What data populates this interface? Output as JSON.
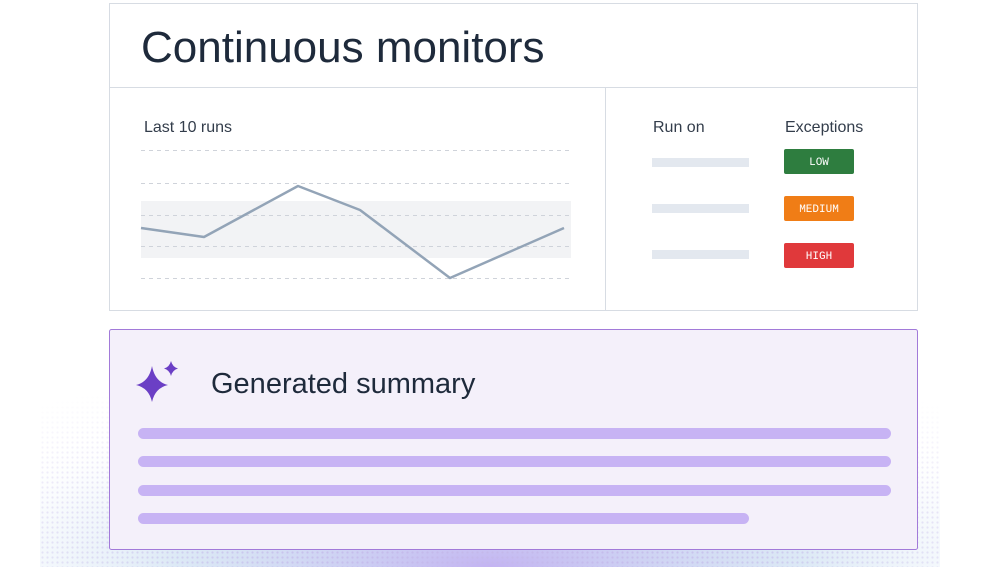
{
  "header": {
    "title": "Continuous monitors"
  },
  "chart": {
    "label": "Last 10 runs"
  },
  "table": {
    "headers": [
      "Run on",
      "Exceptions"
    ],
    "badges": [
      "LOW",
      "MEDIUM",
      "HIGH"
    ]
  },
  "summary": {
    "title": "Generated summary"
  }
}
